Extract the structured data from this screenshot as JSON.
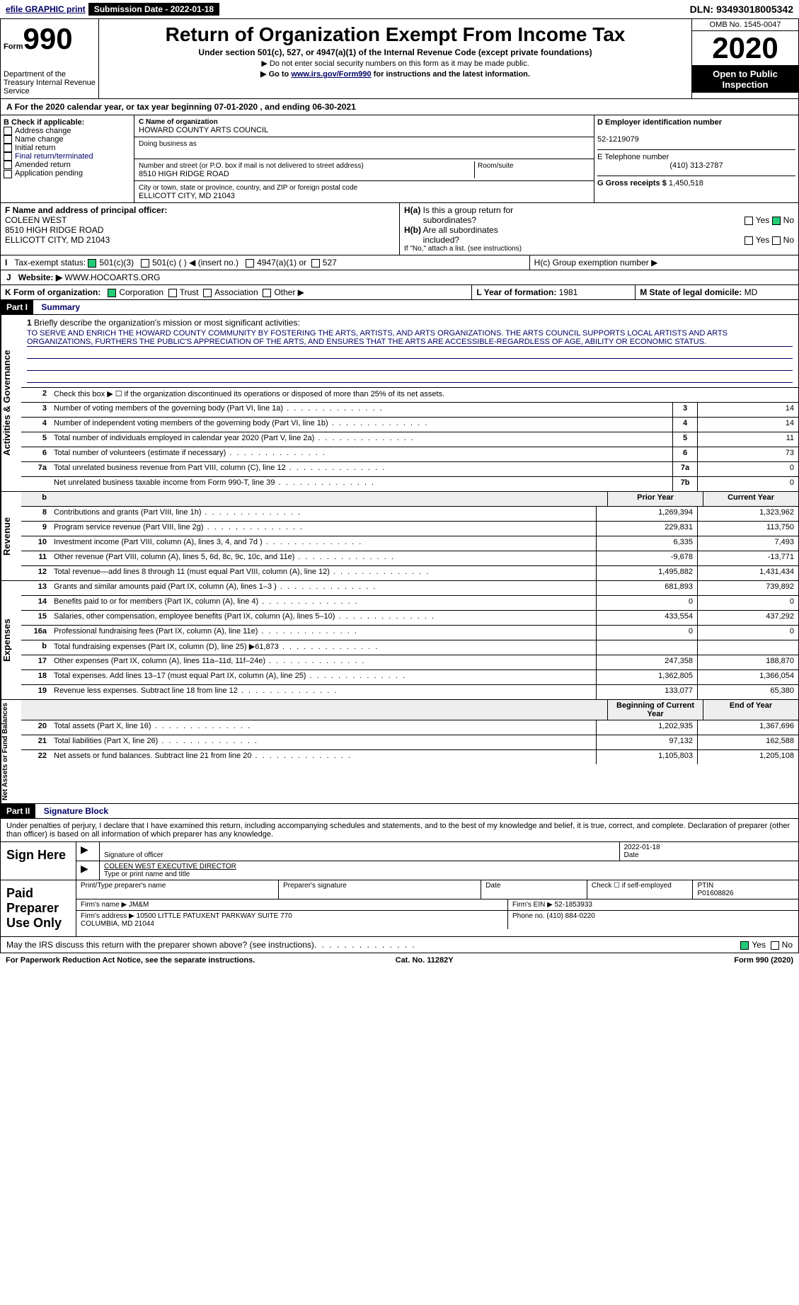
{
  "top": {
    "efile": "efile GRAPHIC print",
    "submission": "Submission Date - 2022-01-18",
    "dln": "DLN: 93493018005342"
  },
  "header": {
    "form": "Form",
    "number": "990",
    "dept": "Department of the Treasury Internal Revenue Service",
    "title": "Return of Organization Exempt From Income Tax",
    "subtitle": "Under section 501(c), 527, or 4947(a)(1) of the Internal Revenue Code (except private foundations)",
    "note1": "▶ Do not enter social security numbers on this form as it may be made public.",
    "note2_pre": "▶ Go to ",
    "note2_link": "www.irs.gov/Form990",
    "note2_post": " for instructions and the latest information.",
    "omb": "OMB No. 1545-0047",
    "year": "2020",
    "public": "Open to Public Inspection"
  },
  "period": "For the 2020 calendar year, or tax year beginning 07-01-2020    , and ending 06-30-2021",
  "sectionB": {
    "label": "B Check if applicable:",
    "opts": [
      "Address change",
      "Name change",
      "Initial return",
      "Final return/terminated",
      "Amended return",
      "Application pending"
    ]
  },
  "sectionC": {
    "name_lbl": "C Name of organization",
    "name": "HOWARD COUNTY ARTS COUNCIL",
    "dba_lbl": "Doing business as",
    "addr_lbl": "Number and street (or P.O. box if mail is not delivered to street address)",
    "room_lbl": "Room/suite",
    "addr": "8510 HIGH RIDGE ROAD",
    "city_lbl": "City or town, state or province, country, and ZIP or foreign postal code",
    "city": "ELLICOTT CITY, MD  21043"
  },
  "sectionD": {
    "lbl": "D Employer identification number",
    "val": "52-1219079"
  },
  "sectionE": {
    "lbl": "E Telephone number",
    "val": "(410) 313-2787"
  },
  "sectionG": {
    "lbl": "G Gross receipts $",
    "val": "1,450,518"
  },
  "sectionF": {
    "lbl": "F  Name and address of principal officer:",
    "name": "COLEEN WEST",
    "addr1": "8510 HIGH RIDGE ROAD",
    "addr2": "ELLICOTT CITY, MD  21043"
  },
  "sectionH": {
    "ha": "H(a)  Is this a group return for subordinates?",
    "hb": "H(b)  Are all subordinates included?",
    "hb_note": "If \"No,\" attach a list. (see instructions)",
    "hc": "H(c)  Group exemption number ▶"
  },
  "taxExempt": {
    "lbl": "Tax-exempt status:",
    "opt1": "501(c)(3)",
    "opt2": "501(c) (  ) ◀ (insert no.)",
    "opt3": "4947(a)(1) or",
    "opt4": "527"
  },
  "sectionJ": {
    "lbl": "J",
    "txt": "Website: ▶",
    "val": "WWW.HOCOARTS.ORG"
  },
  "sectionK": {
    "lbl": "K Form of organization:",
    "opts": [
      "Corporation",
      "Trust",
      "Association",
      "Other ▶"
    ]
  },
  "sectionL": {
    "lbl": "L Year of formation:",
    "val": "1981"
  },
  "sectionM": {
    "lbl": "M State of legal domicile:",
    "val": "MD"
  },
  "part1": {
    "title": "Part I",
    "name": "Summary",
    "line1_lbl": "Briefly describe the organization's mission or most significant activities:",
    "mission": "TO SERVE AND ENRICH THE HOWARD COUNTY COMMUNITY BY FOSTERING THE ARTS, ARTISTS, AND ARTS ORGANIZATIONS. THE ARTS COUNCIL SUPPORTS LOCAL ARTISTS AND ARTS ORGANIZATIONS, FURTHERS THE PUBLIC'S APPRECIATION OF THE ARTS, AND ENSURES THAT THE ARTS ARE ACCESSIBLE-REGARDLESS OF AGE, ABILITY OR ECONOMIC STATUS.",
    "line2": "Check this box ▶ ☐ if the organization discontinued its operations or disposed of more than 25% of its net assets.",
    "vlabels": {
      "gov": "Activities & Governance",
      "rev": "Revenue",
      "exp": "Expenses",
      "net": "Net Assets or Fund Balances"
    },
    "cols": {
      "prior": "Prior Year",
      "current": "Current Year",
      "beg": "Beginning of Current Year",
      "end": "End of Year"
    },
    "gov": [
      {
        "n": "3",
        "t": "Number of voting members of the governing body (Part VI, line 1a)",
        "b": "3",
        "v": "14"
      },
      {
        "n": "4",
        "t": "Number of independent voting members of the governing body (Part VI, line 1b)",
        "b": "4",
        "v": "14"
      },
      {
        "n": "5",
        "t": "Total number of individuals employed in calendar year 2020 (Part V, line 2a)",
        "b": "5",
        "v": "11"
      },
      {
        "n": "6",
        "t": "Total number of volunteers (estimate if necessary)",
        "b": "6",
        "v": "73"
      },
      {
        "n": "7a",
        "t": "Total unrelated business revenue from Part VIII, column (C), line 12",
        "b": "7a",
        "v": "0"
      },
      {
        "n": "",
        "t": "Net unrelated business taxable income from Form 990-T, line 39",
        "b": "7b",
        "v": "0"
      }
    ],
    "rev": [
      {
        "n": "8",
        "t": "Contributions and grants (Part VIII, line 1h)",
        "p": "1,269,394",
        "c": "1,323,962"
      },
      {
        "n": "9",
        "t": "Program service revenue (Part VIII, line 2g)",
        "p": "229,831",
        "c": "113,750"
      },
      {
        "n": "10",
        "t": "Investment income (Part VIII, column (A), lines 3, 4, and 7d )",
        "p": "6,335",
        "c": "7,493"
      },
      {
        "n": "11",
        "t": "Other revenue (Part VIII, column (A), lines 5, 6d, 8c, 9c, 10c, and 11e)",
        "p": "-9,678",
        "c": "-13,771"
      },
      {
        "n": "12",
        "t": "Total revenue—add lines 8 through 11 (must equal Part VIII, column (A), line 12)",
        "p": "1,495,882",
        "c": "1,431,434"
      }
    ],
    "exp": [
      {
        "n": "13",
        "t": "Grants and similar amounts paid (Part IX, column (A), lines 1–3 )",
        "p": "681,893",
        "c": "739,892"
      },
      {
        "n": "14",
        "t": "Benefits paid to or for members (Part IX, column (A), line 4)",
        "p": "0",
        "c": "0"
      },
      {
        "n": "15",
        "t": "Salaries, other compensation, employee benefits (Part IX, column (A), lines 5–10)",
        "p": "433,554",
        "c": "437,292"
      },
      {
        "n": "16a",
        "t": "Professional fundraising fees (Part IX, column (A), line 11e)",
        "p": "0",
        "c": "0"
      },
      {
        "n": "b",
        "t": "Total fundraising expenses (Part IX, column (D), line 25) ▶61,873",
        "p": "",
        "c": ""
      },
      {
        "n": "17",
        "t": "Other expenses (Part IX, column (A), lines 11a–11d, 11f–24e)",
        "p": "247,358",
        "c": "188,870"
      },
      {
        "n": "18",
        "t": "Total expenses. Add lines 13–17 (must equal Part IX, column (A), line 25)",
        "p": "1,362,805",
        "c": "1,366,054"
      },
      {
        "n": "19",
        "t": "Revenue less expenses. Subtract line 18 from line 12",
        "p": "133,077",
        "c": "65,380"
      }
    ],
    "net": [
      {
        "n": "20",
        "t": "Total assets (Part X, line 16)",
        "p": "1,202,935",
        "c": "1,367,696"
      },
      {
        "n": "21",
        "t": "Total liabilities (Part X, line 26)",
        "p": "97,132",
        "c": "162,588"
      },
      {
        "n": "22",
        "t": "Net assets or fund balances. Subtract line 21 from line 20",
        "p": "1,105,803",
        "c": "1,205,108"
      }
    ]
  },
  "part2": {
    "title": "Part II",
    "name": "Signature Block",
    "decl": "Under penalties of perjury, I declare that I have examined this return, including accompanying schedules and statements, and to the best of my knowledge and belief, it is true, correct, and complete. Declaration of preparer (other than officer) is based on all information of which preparer has any knowledge.",
    "sign_here": "Sign Here",
    "sig_officer": "Signature of officer",
    "sig_date": "2022-01-18",
    "date_lbl": "Date",
    "officer_name": "COLEEN WEST  EXECUTIVE DIRECTOR",
    "type_name": "Type or print name and title",
    "paid": "Paid Preparer Use Only",
    "prep_name_lbl": "Print/Type preparer's name",
    "prep_sig_lbl": "Preparer's signature",
    "check_se": "Check ☐ if self-employed",
    "ptin_lbl": "PTIN",
    "ptin": "P01608826",
    "firm_name_lbl": "Firm's name    ▶",
    "firm_name": "JM&M",
    "firm_ein_lbl": "Firm's EIN ▶",
    "firm_ein": "52-1853933",
    "firm_addr_lbl": "Firm's address ▶",
    "firm_addr": "10500 LITTLE PATUXENT PARKWAY SUITE 770\nCOLUMBIA, MD  21044",
    "phone_lbl": "Phone no.",
    "phone": "(410) 884-0220",
    "discuss": "May the IRS discuss this return with the preparer shown above? (see instructions)",
    "yes": "Yes",
    "no": "No"
  },
  "footer": {
    "left": "For Paperwork Reduction Act Notice, see the separate instructions.",
    "mid": "Cat. No. 11282Y",
    "right": "Form 990 (2020)"
  }
}
